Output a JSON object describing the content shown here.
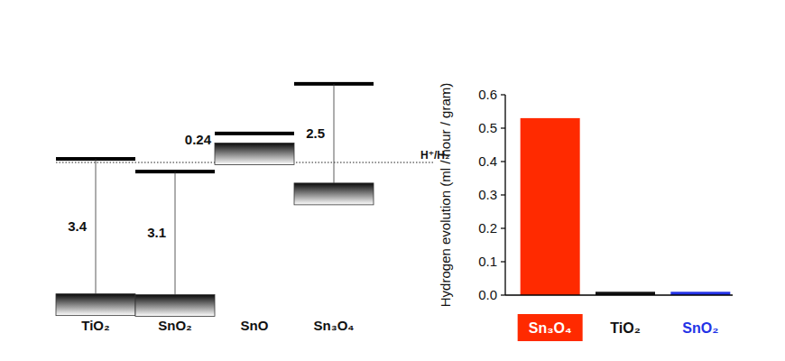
{
  "chart_data": {
    "type": "bar",
    "y_label": "Hydrogen evolution  (ml / hour / gram)",
    "categories": [
      "Sn₃O₄",
      "TiO₂",
      "SnO₂"
    ],
    "values": [
      0.53,
      0.01,
      0.01
    ],
    "colors": [
      "#ff2a00",
      "#111111",
      "#2433e6"
    ],
    "ylim": [
      0,
      0.6
    ],
    "yticks": [
      {
        "value": 0,
        "label": "0.0"
      },
      0.1,
      0.2,
      0.3,
      0.4,
      0.5,
      0.6
    ],
    "grid": false
  },
  "band_diagram": {
    "reference": "H⁺/H₂",
    "materials": [
      {
        "name": "TiO₂",
        "conduction_band": 0.09,
        "band_gap": 3.4
      },
      {
        "name": "SnO₂",
        "conduction_band": -0.23,
        "band_gap": 3.1
      },
      {
        "name": "SnO",
        "conduction_band": 0.73,
        "band_gap": 0.24
      },
      {
        "name": "Sn₃O₄",
        "conduction_band": 1.98,
        "band_gap": 2.5
      }
    ]
  }
}
